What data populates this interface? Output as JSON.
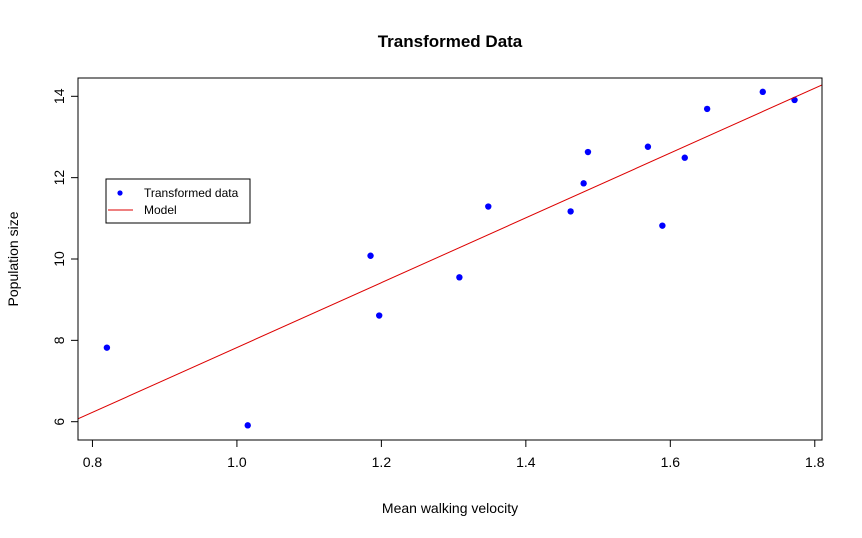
{
  "chart_data": {
    "type": "scatter",
    "title": "Transformed Data",
    "xlabel": "Mean walking velocity",
    "ylabel": "Population size",
    "xlim": [
      0.78,
      1.81
    ],
    "ylim": [
      5.55,
      14.45
    ],
    "xticks": [
      "0.8",
      "1.0",
      "1.2",
      "1.4",
      "1.6",
      "1.8"
    ],
    "yticks": [
      "6",
      "8",
      "10",
      "12",
      "14"
    ],
    "grid": false,
    "legend_position": "left",
    "series": [
      {
        "name": "Transformed data",
        "kind": "points",
        "color": "#0000ff",
        "x": [
          0.82,
          1.015,
          1.185,
          1.197,
          1.308,
          1.348,
          1.462,
          1.48,
          1.486,
          1.569,
          1.589,
          1.62,
          1.651,
          1.728,
          1.772
        ],
        "y": [
          7.82,
          5.91,
          10.08,
          8.61,
          9.55,
          11.29,
          11.17,
          11.86,
          12.63,
          12.76,
          10.82,
          12.49,
          13.69,
          14.11,
          13.91
        ]
      },
      {
        "name": "Model",
        "kind": "line",
        "color": "#dd0000",
        "x": [
          0.78,
          1.81
        ],
        "y": [
          6.07,
          14.28
        ]
      }
    ]
  }
}
